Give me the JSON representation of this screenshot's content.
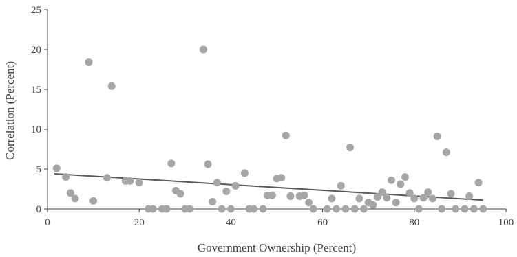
{
  "chart_data": {
    "type": "scatter",
    "title": "",
    "xlabel": "Government Ownership (Percent)",
    "ylabel": "Correlation (Percent)",
    "xlim": [
      0,
      100
    ],
    "ylim": [
      0,
      25
    ],
    "xticks": [
      0,
      20,
      40,
      60,
      80,
      100
    ],
    "yticks": [
      0,
      5,
      10,
      15,
      20,
      25
    ],
    "xtick_labels": [
      "0",
      "20",
      "40",
      "60",
      "80",
      "100"
    ],
    "ytick_labels": [
      "0",
      "5",
      "10",
      "15",
      "20",
      "25"
    ],
    "grid": false,
    "point_color": "#a6a6a6",
    "trendline_color": "#595959",
    "axis_color": "#404040",
    "trendline": {
      "x": [
        1.5,
        95
      ],
      "y": [
        4.4,
        1.1
      ]
    },
    "points": [
      {
        "x": 2,
        "y": 5.1
      },
      {
        "x": 4,
        "y": 4.0
      },
      {
        "x": 5,
        "y": 2.0
      },
      {
        "x": 6,
        "y": 1.3
      },
      {
        "x": 9,
        "y": 18.4
      },
      {
        "x": 10,
        "y": 1.0
      },
      {
        "x": 13,
        "y": 3.9
      },
      {
        "x": 14,
        "y": 15.4
      },
      {
        "x": 17,
        "y": 3.5
      },
      {
        "x": 18,
        "y": 3.5
      },
      {
        "x": 20,
        "y": 3.3
      },
      {
        "x": 22,
        "y": 0
      },
      {
        "x": 23,
        "y": 0
      },
      {
        "x": 25,
        "y": 0
      },
      {
        "x": 26,
        "y": 0
      },
      {
        "x": 27,
        "y": 5.7
      },
      {
        "x": 28,
        "y": 2.3
      },
      {
        "x": 29,
        "y": 1.9
      },
      {
        "x": 30,
        "y": 0
      },
      {
        "x": 31,
        "y": 0
      },
      {
        "x": 34,
        "y": 20.0
      },
      {
        "x": 35,
        "y": 5.6
      },
      {
        "x": 36,
        "y": 0.9
      },
      {
        "x": 37,
        "y": 3.3
      },
      {
        "x": 38,
        "y": 0
      },
      {
        "x": 39,
        "y": 2.2
      },
      {
        "x": 40,
        "y": 0
      },
      {
        "x": 41,
        "y": 2.9
      },
      {
        "x": 43,
        "y": 4.5
      },
      {
        "x": 44,
        "y": 0
      },
      {
        "x": 45,
        "y": 0
      },
      {
        "x": 47,
        "y": 0
      },
      {
        "x": 48,
        "y": 1.7
      },
      {
        "x": 49,
        "y": 1.7
      },
      {
        "x": 50,
        "y": 3.8
      },
      {
        "x": 51,
        "y": 3.9
      },
      {
        "x": 52,
        "y": 9.2
      },
      {
        "x": 53,
        "y": 1.6
      },
      {
        "x": 55,
        "y": 1.6
      },
      {
        "x": 56,
        "y": 1.7
      },
      {
        "x": 57,
        "y": 0.8
      },
      {
        "x": 58,
        "y": 0
      },
      {
        "x": 61,
        "y": 0
      },
      {
        "x": 62,
        "y": 1.3
      },
      {
        "x": 63,
        "y": 0
      },
      {
        "x": 64,
        "y": 2.9
      },
      {
        "x": 65,
        "y": 0
      },
      {
        "x": 66,
        "y": 7.7
      },
      {
        "x": 67,
        "y": 0
      },
      {
        "x": 68,
        "y": 1.3
      },
      {
        "x": 69,
        "y": 0
      },
      {
        "x": 70,
        "y": 0.8
      },
      {
        "x": 71,
        "y": 0.5
      },
      {
        "x": 72,
        "y": 1.5
      },
      {
        "x": 73,
        "y": 2.1
      },
      {
        "x": 74,
        "y": 1.4
      },
      {
        "x": 75,
        "y": 3.6
      },
      {
        "x": 76,
        "y": 0.8
      },
      {
        "x": 77,
        "y": 3.1
      },
      {
        "x": 78,
        "y": 4.0
      },
      {
        "x": 79,
        "y": 2.0
      },
      {
        "x": 80,
        "y": 1.3
      },
      {
        "x": 81,
        "y": 0
      },
      {
        "x": 82,
        "y": 1.4
      },
      {
        "x": 83,
        "y": 2.1
      },
      {
        "x": 84,
        "y": 1.3
      },
      {
        "x": 85,
        "y": 9.1
      },
      {
        "x": 86,
        "y": 0
      },
      {
        "x": 87,
        "y": 7.1
      },
      {
        "x": 88,
        "y": 1.9
      },
      {
        "x": 89,
        "y": 0
      },
      {
        "x": 91,
        "y": 0
      },
      {
        "x": 92,
        "y": 1.6
      },
      {
        "x": 93,
        "y": 0
      },
      {
        "x": 94,
        "y": 3.3
      },
      {
        "x": 95,
        "y": 0
      }
    ]
  }
}
